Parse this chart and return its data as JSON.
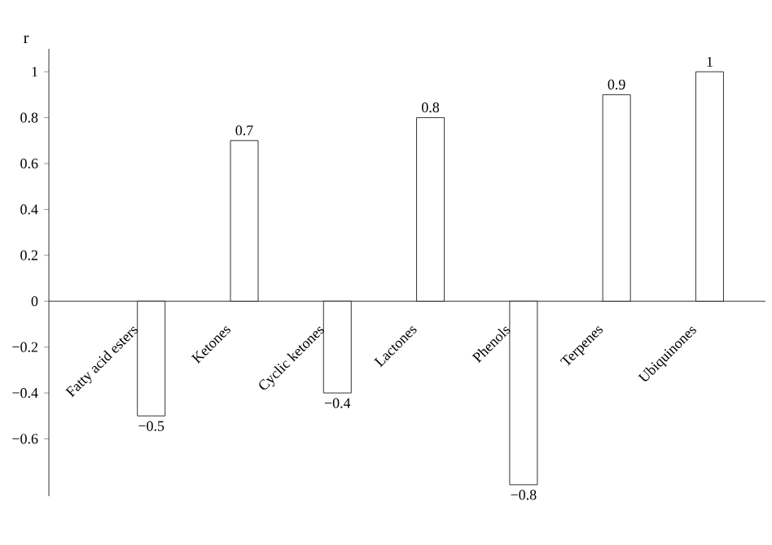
{
  "chart_data": {
    "type": "bar",
    "ylabel": "r",
    "categories": [
      "Fatty acid esters",
      "Ketones",
      "Cyclic ketones",
      "Lactones",
      "Phenols",
      "Terpenes",
      "Ubiquinones"
    ],
    "values": [
      -0.5,
      0.7,
      -0.4,
      0.8,
      -0.8,
      0.9,
      1
    ],
    "value_labels": [
      "−0.5",
      "0.7",
      "−0.4",
      "0.8",
      "−0.8",
      "0.9",
      "1"
    ],
    "color": "#ffffff",
    "ylim": [
      -0.85,
      1.1
    ],
    "yticks": [
      {
        "value": -0.6,
        "label": "−0.6"
      },
      {
        "value": -0.4,
        "label": "−0.4"
      },
      {
        "value": -0.2,
        "label": "−0.2"
      },
      0,
      0.2,
      0.4,
      0.6,
      0.8,
      1
    ],
    "grid": false
  }
}
